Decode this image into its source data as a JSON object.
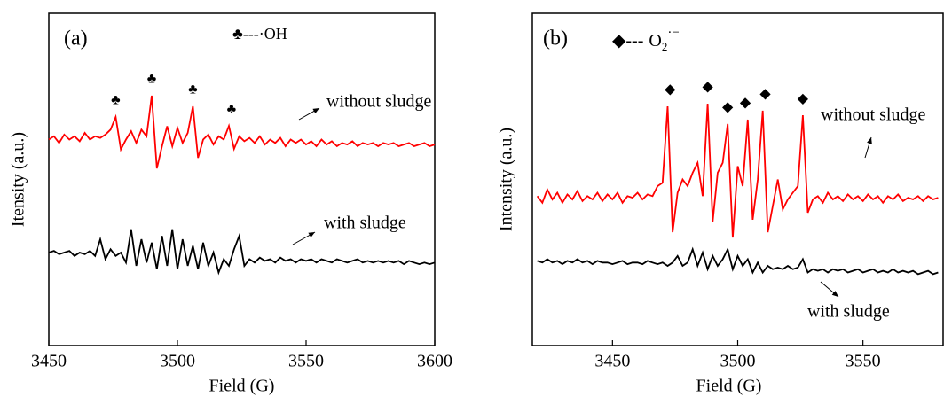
{
  "chart_data": [
    {
      "type": "line",
      "panel_label": "(a)",
      "xlabel": "Field (G)",
      "ylabel": "Itensity (a.u.)",
      "legend_text": "♣---·OH",
      "markers": {
        "symbol": "♣",
        "x": [
          3476,
          3490,
          3506,
          3521
        ]
      },
      "xlim": [
        3450,
        3600
      ],
      "xticks": [
        3450,
        3500,
        3550,
        3600
      ],
      "ylim": [
        0,
        10
      ],
      "x": [
        3450,
        3452,
        3454,
        3456,
        3458,
        3460,
        3462,
        3464,
        3466,
        3468,
        3470,
        3472,
        3474,
        3476,
        3478,
        3480,
        3482,
        3484,
        3486,
        3488,
        3490,
        3492,
        3494,
        3496,
        3498,
        3500,
        3502,
        3504,
        3506,
        3508,
        3510,
        3512,
        3514,
        3516,
        3518,
        3520,
        3522,
        3524,
        3526,
        3528,
        3530,
        3532,
        3534,
        3536,
        3538,
        3540,
        3542,
        3544,
        3546,
        3548,
        3550,
        3552,
        3554,
        3556,
        3558,
        3560,
        3562,
        3564,
        3566,
        3568,
        3570,
        3572,
        3574,
        3576,
        3578,
        3580,
        3582,
        3584,
        3586,
        3588,
        3590,
        3592,
        3594,
        3596,
        3598,
        3600
      ],
      "series": [
        {
          "name": "without sludge",
          "color": "#ff0000",
          "values": [
            6.2,
            6.3,
            6.1,
            6.35,
            6.2,
            6.3,
            6.15,
            6.4,
            6.2,
            6.3,
            6.25,
            6.35,
            6.5,
            6.88,
            5.9,
            6.2,
            6.45,
            6.1,
            6.5,
            6.3,
            7.52,
            5.33,
            6.0,
            6.6,
            6.0,
            6.55,
            6.1,
            6.4,
            7.2,
            5.65,
            6.2,
            6.35,
            6.05,
            6.3,
            6.2,
            6.61,
            5.92,
            6.3,
            6.15,
            6.25,
            6.1,
            6.3,
            6.05,
            6.2,
            6.1,
            6.25,
            6.0,
            6.2,
            6.1,
            6.2,
            6.05,
            6.15,
            6.0,
            6.2,
            6.05,
            6.15,
            6.0,
            6.1,
            6.05,
            6.15,
            6.0,
            6.1,
            6.05,
            6.1,
            6.0,
            6.1,
            6.05,
            6.1,
            6.0,
            6.05,
            6.1,
            6.0,
            6.05,
            6.1,
            6.0,
            6.05
          ]
        },
        {
          "name": "with sludge",
          "color": "#000000",
          "values": [
            2.8,
            2.85,
            2.75,
            2.8,
            2.85,
            2.7,
            2.8,
            2.75,
            2.85,
            2.7,
            3.2,
            2.6,
            2.9,
            2.7,
            2.8,
            2.5,
            3.5,
            2.4,
            3.2,
            2.5,
            3.1,
            2.3,
            3.3,
            2.4,
            3.5,
            2.3,
            3.2,
            2.4,
            3.0,
            2.3,
            3.1,
            2.4,
            2.8,
            2.2,
            2.6,
            2.4,
            2.9,
            3.3,
            2.4,
            2.6,
            2.5,
            2.65,
            2.55,
            2.6,
            2.5,
            2.65,
            2.55,
            2.6,
            2.5,
            2.6,
            2.55,
            2.6,
            2.5,
            2.6,
            2.55,
            2.5,
            2.6,
            2.55,
            2.5,
            2.55,
            2.6,
            2.5,
            2.55,
            2.5,
            2.55,
            2.5,
            2.55,
            2.5,
            2.55,
            2.45,
            2.55,
            2.5,
            2.45,
            2.5,
            2.45,
            2.5
          ]
        }
      ]
    },
    {
      "type": "line",
      "panel_label": "(b)",
      "xlabel": "Field (G)",
      "ylabel": "Intensity (a.u.)",
      "legend_parts": {
        "symbol": "◆---",
        "species": "O",
        "sub": "2",
        "sup": "·−"
      },
      "markers": {
        "symbol": "◆",
        "x": [
          3473,
          3488,
          3496,
          3503,
          3511,
          3526
        ]
      },
      "xlim": [
        3418,
        3582
      ],
      "xticks": [
        3450,
        3500,
        3550
      ],
      "ylim": [
        0,
        10
      ],
      "x": [
        3420,
        3422,
        3424,
        3426,
        3428,
        3430,
        3432,
        3434,
        3436,
        3438,
        3440,
        3442,
        3444,
        3446,
        3448,
        3450,
        3452,
        3454,
        3456,
        3458,
        3460,
        3462,
        3464,
        3466,
        3468,
        3470,
        3472,
        3474,
        3476,
        3478,
        3480,
        3482,
        3484,
        3486,
        3488,
        3490,
        3492,
        3494,
        3496,
        3498,
        3500,
        3502,
        3504,
        3506,
        3508,
        3510,
        3512,
        3514,
        3516,
        3518,
        3520,
        3522,
        3524,
        3526,
        3528,
        3530,
        3532,
        3534,
        3536,
        3538,
        3540,
        3542,
        3544,
        3546,
        3548,
        3550,
        3552,
        3554,
        3556,
        3558,
        3560,
        3562,
        3564,
        3566,
        3568,
        3570,
        3572,
        3574,
        3576,
        3578,
        3580
      ],
      "series": [
        {
          "name": "without sludge",
          "color": "#ff0000",
          "values": [
            4.5,
            4.3,
            4.7,
            4.4,
            4.6,
            4.3,
            4.55,
            4.4,
            4.65,
            4.35,
            4.5,
            4.4,
            4.6,
            4.35,
            4.55,
            4.4,
            4.6,
            4.3,
            4.5,
            4.45,
            4.6,
            4.4,
            4.55,
            4.5,
            4.8,
            4.9,
            7.2,
            3.41,
            4.6,
            5.0,
            4.8,
            5.2,
            5.5,
            4.5,
            7.28,
            3.73,
            5.2,
            5.5,
            6.67,
            3.25,
            5.4,
            4.8,
            6.8,
            3.79,
            5.0,
            7.07,
            3.41,
            4.2,
            5.0,
            4.1,
            4.4,
            4.6,
            4.8,
            6.93,
            4.0,
            4.4,
            4.5,
            4.3,
            4.6,
            4.4,
            4.5,
            4.35,
            4.55,
            4.4,
            4.5,
            4.35,
            4.55,
            4.4,
            4.5,
            4.3,
            4.5,
            4.4,
            4.55,
            4.35,
            4.45,
            4.4,
            4.5,
            4.35,
            4.5,
            4.4,
            4.45
          ]
        },
        {
          "name": "with sludge",
          "color": "#000000",
          "values": [
            2.55,
            2.5,
            2.6,
            2.5,
            2.55,
            2.45,
            2.55,
            2.5,
            2.6,
            2.5,
            2.55,
            2.45,
            2.55,
            2.5,
            2.5,
            2.45,
            2.5,
            2.55,
            2.45,
            2.5,
            2.5,
            2.45,
            2.55,
            2.5,
            2.45,
            2.5,
            2.4,
            2.5,
            2.7,
            2.4,
            2.5,
            2.9,
            2.4,
            2.8,
            2.3,
            2.7,
            2.4,
            2.6,
            2.9,
            2.3,
            2.7,
            2.4,
            2.6,
            2.2,
            2.5,
            2.2,
            2.4,
            2.3,
            2.35,
            2.3,
            2.4,
            2.3,
            2.35,
            2.6,
            2.2,
            2.3,
            2.25,
            2.3,
            2.2,
            2.3,
            2.25,
            2.3,
            2.2,
            2.25,
            2.3,
            2.2,
            2.25,
            2.3,
            2.2,
            2.25,
            2.2,
            2.3,
            2.2,
            2.25,
            2.2,
            2.25,
            2.15,
            2.2,
            2.25,
            2.15,
            2.2
          ]
        }
      ]
    }
  ]
}
